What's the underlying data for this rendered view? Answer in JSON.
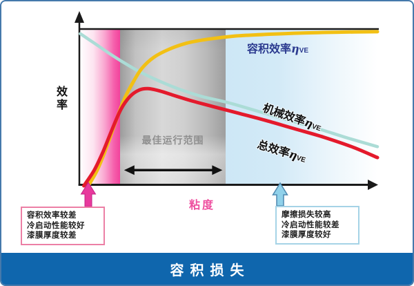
{
  "bottom_bar": {
    "label": "容积损失",
    "bg_color": "#0f66ad"
  },
  "axes": {
    "y_label": "效率",
    "x_label": "粘度"
  },
  "regions": {
    "optimal_label": "最佳运行范围"
  },
  "curve_labels": {
    "volumetric": {
      "text": "容积效率",
      "eta": "η",
      "sub": "VE"
    },
    "mechanical": {
      "text": "机械效率",
      "eta": "η",
      "sub": "VE"
    },
    "total": {
      "text": "总效率",
      "eta": "η",
      "sub": "VE"
    }
  },
  "callouts": {
    "left": {
      "lines": [
        "容积效率较差",
        "冷启动性能较好",
        "漆膜厚度较差"
      ],
      "border_color": "#ec7fa5",
      "arrow_color": "#e8399d"
    },
    "right": {
      "lines": [
        "摩擦损失较高",
        "冷启动性能较差",
        "漆膜厚度较好"
      ],
      "border_color": "#a5d3e6",
      "arrow_color": "#90d1ea"
    }
  },
  "colors": {
    "frame_border": "#4579ab",
    "volumetric_curve": "#f2c014",
    "mechanical_curve": "#abdcd6",
    "total_curve": "#e41a2c",
    "pink_region": "#f2429c",
    "blue_region": "#cde7f6",
    "optimal_text": "#8f8f8f",
    "viscosity_text": "#ee4f9f",
    "volumetric_label_text": "#2b3a8f"
  },
  "chart_data": {
    "type": "line",
    "title": "容积损失",
    "xlabel": "粘度",
    "ylabel": "效率",
    "x_axis": {
      "range": [
        0,
        100
      ],
      "ticks": "none",
      "unit": "relative (viscosity increases rightward)"
    },
    "y_axis": {
      "range": [
        0,
        100
      ],
      "ticks": "none",
      "unit": "relative efficiency"
    },
    "grid": false,
    "legend_position": "inline-labels",
    "series": [
      {
        "name": "容积效率ηVE",
        "color": "#f2c014",
        "x": [
          3,
          6,
          9,
          12,
          15,
          18,
          21,
          25,
          30,
          36,
          43,
          52,
          62,
          75,
          88,
          100
        ],
        "y": [
          0,
          10,
          24,
          40,
          55,
          66,
          75,
          82,
          87,
          91,
          93.5,
          95.5,
          96.5,
          97.5,
          98,
          98.3
        ]
      },
      {
        "name": "机械效率ηVE",
        "color": "#abdcd6",
        "x": [
          0.3,
          5,
          10,
          15,
          20,
          26,
          33,
          41,
          50,
          60,
          70,
          80,
          90,
          100
        ],
        "y": [
          97,
          91,
          84.5,
          78.5,
          73,
          67.5,
          62,
          57,
          53,
          47.5,
          42,
          36.5,
          30.5,
          25
        ]
      },
      {
        "name": "总效率ηVE",
        "color": "#e41a2c",
        "x": [
          1.5,
          5,
          8,
          11,
          14,
          17,
          20,
          23,
          27,
          32,
          38,
          45,
          53,
          62,
          72,
          82,
          92,
          100
        ],
        "y": [
          0,
          10,
          22,
          36,
          49,
          57,
          61,
          62,
          60.5,
          57.5,
          54,
          50.5,
          46.5,
          42,
          36.5,
          31,
          24.5,
          18
        ]
      }
    ],
    "regions": [
      {
        "x_start": 0,
        "x_end": 14,
        "style": "pink gradient",
        "colors": [
          "#ffffff",
          "#f2429c"
        ]
      },
      {
        "x_start": 14,
        "x_end": 49,
        "style": "gray cylinder",
        "label": "最佳运行范围",
        "colors": [
          "#9c9c9c",
          "#d8d8d8",
          "#9e9e9e"
        ]
      },
      {
        "x_start": 49,
        "x_end": 99,
        "style": "blue fading",
        "colors": [
          "#cde7f6",
          "#ffffff"
        ]
      }
    ],
    "annotations": {
      "range_arrow": {
        "x1": 15,
        "x2": 48,
        "y": 10,
        "style": "double-headed"
      },
      "low_viscosity_marker": {
        "x": 3,
        "color": "#e8399d",
        "note_lines": [
          "容积效率较差",
          "冷启动性能较好",
          "漆膜厚度较差"
        ]
      },
      "high_viscosity_marker": {
        "x": 67,
        "color": "#90d1ea",
        "note_lines": [
          "摩擦损失较高",
          "冷启动性能较差",
          "漆膜厚度较好"
        ]
      }
    }
  }
}
